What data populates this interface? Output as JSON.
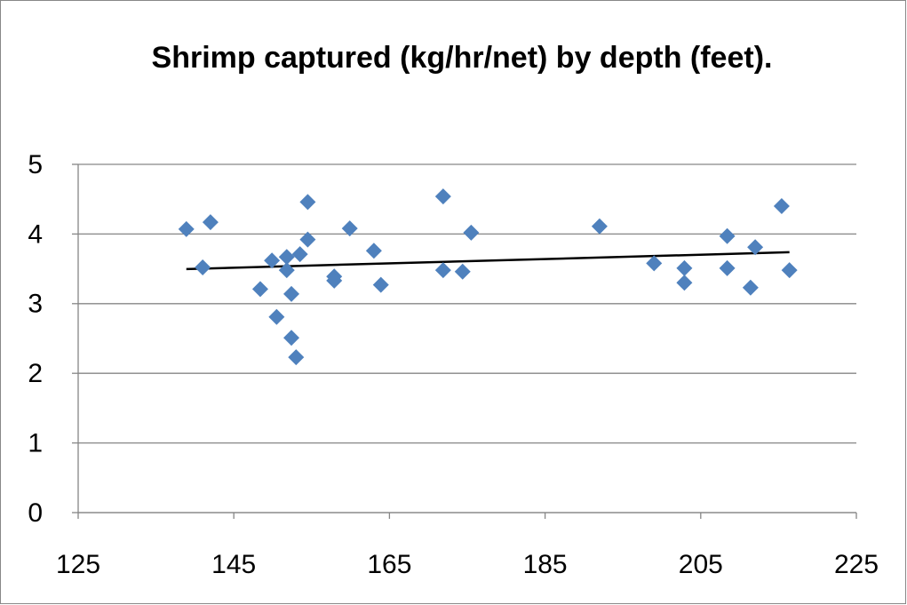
{
  "chart_data": {
    "type": "scatter",
    "title": "Shrimp captured (kg/hr/net) by depth (feet).",
    "x": [
      138.9,
      141.0,
      142.0,
      148.4,
      149.9,
      150.5,
      151.8,
      151.8,
      152.4,
      152.4,
      153.0,
      153.5,
      154.5,
      154.5,
      157.9,
      157.9,
      159.9,
      163.0,
      163.9,
      171.9,
      171.9,
      174.4,
      175.5,
      192.0,
      199.0,
      202.9,
      202.9,
      208.4,
      208.4,
      211.4,
      212.0,
      215.4,
      216.4
    ],
    "values": [
      4.07,
      3.52,
      4.17,
      3.21,
      3.62,
      2.81,
      3.67,
      3.48,
      3.14,
      2.51,
      2.23,
      3.71,
      4.46,
      3.92,
      3.39,
      3.33,
      4.08,
      3.76,
      3.27,
      4.54,
      3.48,
      3.46,
      4.02,
      4.11,
      3.58,
      3.51,
      3.3,
      3.97,
      3.51,
      3.23,
      3.81,
      4.4,
      3.48
    ],
    "color": "#4f81bd",
    "trendline": "linear",
    "trendline_color": "#000000",
    "xlim": [
      125,
      225
    ],
    "xticks": [
      125,
      145,
      165,
      185,
      205,
      225
    ],
    "ylim": [
      0,
      5
    ],
    "yticks": [
      0,
      1,
      2,
      3,
      4,
      5
    ],
    "grid": true
  }
}
